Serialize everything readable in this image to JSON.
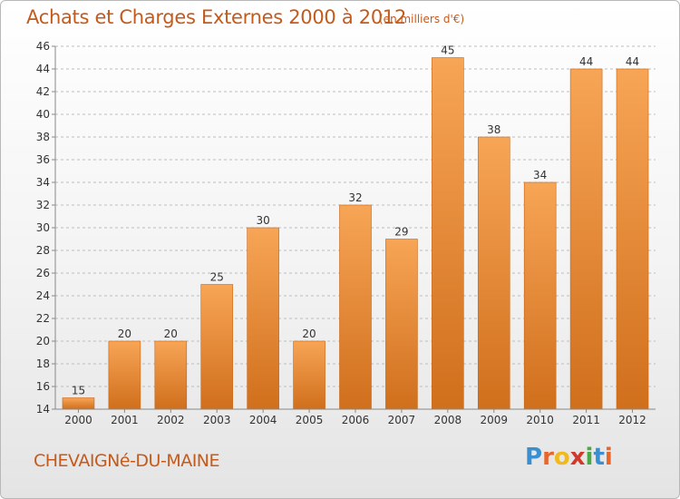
{
  "title": "Achats et Charges Externes 2000 à 2012",
  "subtitle": "(en milliers d'€)",
  "commune": "CHEVAIGNé-DU-MAINE",
  "brand": {
    "letters": [
      "P",
      "r",
      "o",
      "x",
      "i",
      "t",
      "i"
    ],
    "colors": [
      "#3a8fd0",
      "#e8662a",
      "#f2b91c",
      "#d03a2a",
      "#4aa845",
      "#3a8fd0",
      "#e8662a"
    ]
  },
  "colors": {
    "bar_top": "#f7a556",
    "bar_bottom": "#d06f1c",
    "bar_edge": "#c86618",
    "grid": "#bdbdbd",
    "axis_text": "#333333",
    "accent": "#c45a1c"
  },
  "chart_data": {
    "type": "bar",
    "categories": [
      "2000",
      "2001",
      "2002",
      "2003",
      "2004",
      "2005",
      "2006",
      "2007",
      "2008",
      "2009",
      "2010",
      "2011",
      "2012"
    ],
    "values": [
      15,
      20,
      20,
      25,
      30,
      20,
      32,
      29,
      45,
      38,
      34,
      44,
      44
    ],
    "ylim": [
      14,
      46
    ],
    "yticks": [
      14,
      16,
      18,
      20,
      22,
      24,
      26,
      28,
      30,
      32,
      34,
      36,
      38,
      40,
      42,
      44,
      46
    ],
    "grid": true,
    "title": "Achats et Charges Externes 2000 à 2012",
    "xlabel": "",
    "ylabel": ""
  }
}
